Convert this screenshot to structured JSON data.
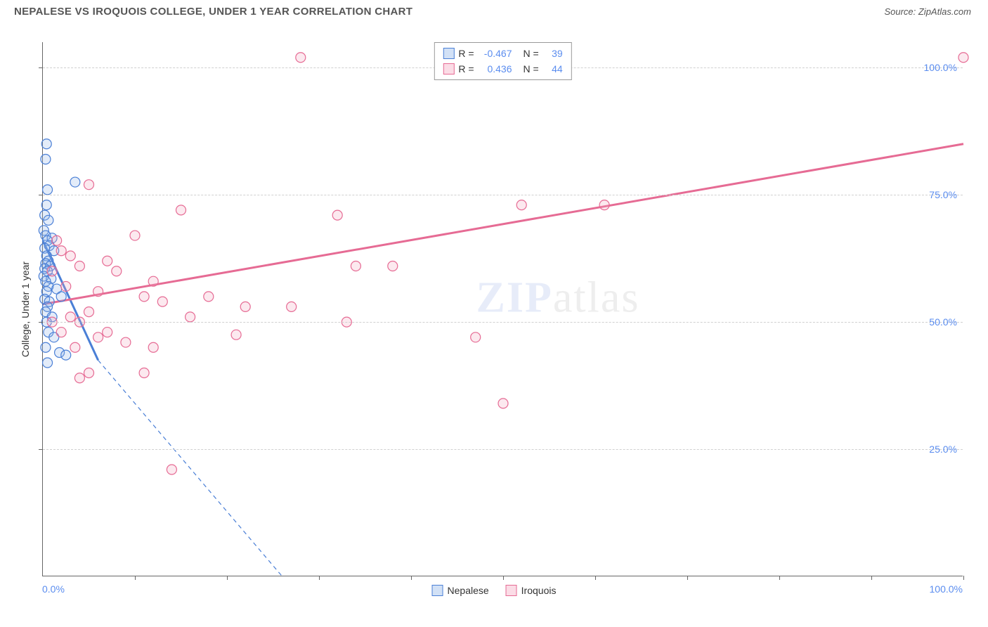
{
  "header": {
    "title": "NEPALESE VS IROQUOIS COLLEGE, UNDER 1 YEAR CORRELATION CHART",
    "source_prefix": "Source: ",
    "source": "ZipAtlas.com"
  },
  "watermark": {
    "bold": "ZIP",
    "rest": "atlas"
  },
  "chart": {
    "type": "scatter",
    "ylabel": "College, Under 1 year",
    "xlim": [
      0,
      100
    ],
    "ylim": [
      0,
      105
    ],
    "xaxis_min_label": "0.0%",
    "xaxis_max_label": "100.0%",
    "yticks": [
      25,
      50,
      75,
      100
    ],
    "ytick_labels": [
      "25.0%",
      "50.0%",
      "75.0%",
      "100.0%"
    ],
    "xticks": [
      10,
      20,
      30,
      40,
      50,
      60,
      70,
      80,
      90,
      100
    ],
    "background_color": "#ffffff",
    "grid_color": "#d0d0d0",
    "marker_radius": 7,
    "marker_fill_opacity": 0.25,
    "marker_stroke_width": 1.2,
    "series": [
      {
        "name": "Nepalese",
        "color_stroke": "#4a7fd6",
        "color_fill": "#8fb4e8",
        "R": "-0.467",
        "N": "39",
        "points": [
          [
            0.4,
            85
          ],
          [
            0.3,
            82
          ],
          [
            3.5,
            77.5
          ],
          [
            0.5,
            76
          ],
          [
            0.4,
            73
          ],
          [
            0.2,
            71
          ],
          [
            0.6,
            70
          ],
          [
            0.1,
            68
          ],
          [
            0.3,
            67
          ],
          [
            1.0,
            66.5
          ],
          [
            0.5,
            66
          ],
          [
            0.7,
            65
          ],
          [
            0.2,
            64.5
          ],
          [
            1.2,
            64
          ],
          [
            0.4,
            63
          ],
          [
            0.6,
            62
          ],
          [
            0.3,
            61.5
          ],
          [
            0.8,
            61
          ],
          [
            0.2,
            60.5
          ],
          [
            0.5,
            60
          ],
          [
            0.1,
            59
          ],
          [
            0.9,
            58.5
          ],
          [
            0.3,
            58
          ],
          [
            0.6,
            57
          ],
          [
            1.5,
            56.5
          ],
          [
            0.4,
            56
          ],
          [
            2.0,
            55
          ],
          [
            0.2,
            54.5
          ],
          [
            0.7,
            54
          ],
          [
            0.5,
            53
          ],
          [
            0.3,
            52
          ],
          [
            1.0,
            51
          ],
          [
            0.4,
            50
          ],
          [
            0.6,
            48
          ],
          [
            1.2,
            47
          ],
          [
            0.3,
            45
          ],
          [
            1.8,
            44
          ],
          [
            2.5,
            43.5
          ],
          [
            0.5,
            42
          ]
        ],
        "trend": {
          "x1": 0,
          "y1": 66,
          "x2": 6,
          "y2": 42.5,
          "dash_x2": 26,
          "dash_y2": 0,
          "stroke_width": 3
        }
      },
      {
        "name": "Iroquois",
        "color_stroke": "#e66b94",
        "color_fill": "#f5a8c0",
        "R": "0.436",
        "N": "44",
        "points": [
          [
            28,
            102
          ],
          [
            100,
            102
          ],
          [
            5,
            77
          ],
          [
            52,
            73
          ],
          [
            61,
            73
          ],
          [
            15,
            72
          ],
          [
            32,
            71
          ],
          [
            10,
            67
          ],
          [
            1.5,
            66
          ],
          [
            2,
            64
          ],
          [
            3,
            63
          ],
          [
            7,
            62
          ],
          [
            4,
            61
          ],
          [
            34,
            61
          ],
          [
            38,
            61
          ],
          [
            1,
            60
          ],
          [
            8,
            60
          ],
          [
            12,
            58
          ],
          [
            2.5,
            57
          ],
          [
            6,
            56
          ],
          [
            18,
            55
          ],
          [
            11,
            55
          ],
          [
            13,
            54
          ],
          [
            22,
            53
          ],
          [
            27,
            53
          ],
          [
            5,
            52
          ],
          [
            3,
            51
          ],
          [
            16,
            51
          ],
          [
            1,
            50
          ],
          [
            33,
            50
          ],
          [
            4,
            50
          ],
          [
            2,
            48
          ],
          [
            7,
            48
          ],
          [
            21,
            47.5
          ],
          [
            47,
            47
          ],
          [
            6,
            47
          ],
          [
            9,
            46
          ],
          [
            3.5,
            45
          ],
          [
            12,
            45
          ],
          [
            5,
            40
          ],
          [
            11,
            40
          ],
          [
            4,
            39
          ],
          [
            50,
            34
          ],
          [
            14,
            21
          ]
        ],
        "trend": {
          "x1": 0,
          "y1": 53.5,
          "x2": 100,
          "y2": 85,
          "stroke_width": 3
        }
      }
    ],
    "legend_bottom": [
      {
        "label": "Nepalese",
        "swatch_fill": "#8fb4e8",
        "swatch_stroke": "#4a7fd6"
      },
      {
        "label": "Iroquois",
        "swatch_fill": "#f5a8c0",
        "swatch_stroke": "#e66b94"
      }
    ],
    "legend_top_labels": {
      "R": "R =",
      "N": "N ="
    }
  }
}
